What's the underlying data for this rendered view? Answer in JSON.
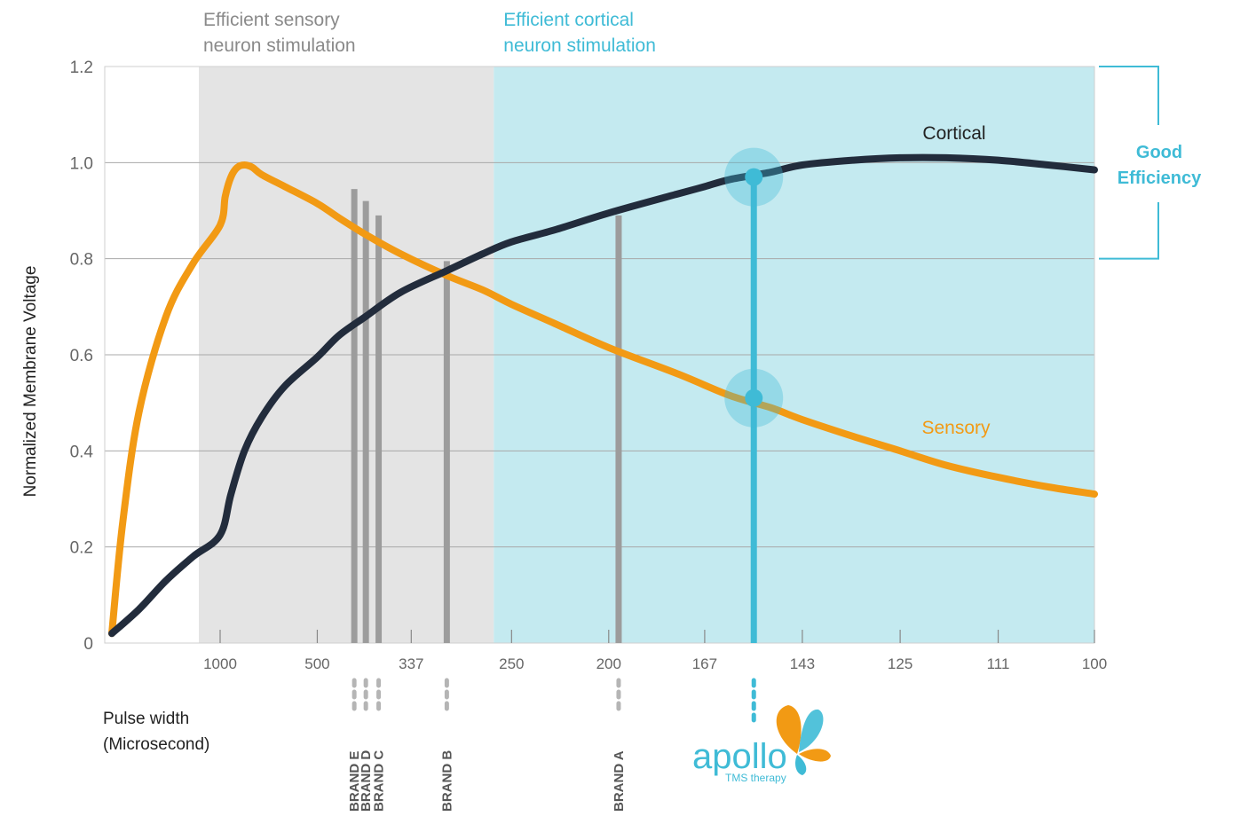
{
  "chart_data": {
    "type": "line",
    "ylabel": "Normalized Membrane Voltage",
    "xlabel_lines": [
      "Pulse width",
      "(Microsecond)"
    ],
    "ylim": [
      0,
      1.2
    ],
    "y_ticks": [
      "0",
      "0.2",
      "0.4",
      "0.6",
      "0.8",
      "1.0",
      "1.2"
    ],
    "x_ticks": [
      "1000",
      "500",
      "337",
      "250",
      "200",
      "167",
      "143",
      "125",
      "111",
      "100"
    ],
    "x_scale": "reciprocal",
    "grid": "horizontal",
    "regions": [
      {
        "name_lines": [
          "Efficient sensory",
          "neuron stimulation"
        ],
        "color": "#e4e4e4",
        "text_color": "#8a8a8a"
      },
      {
        "name_lines": [
          "Efficient cortical",
          "neuron stimulation"
        ],
        "color": "#c4eaf0",
        "text_color": "#3fbbd6"
      }
    ],
    "series": [
      {
        "name": "Cortical",
        "color": "#222c3c",
        "points": [
          [
            1200,
            0.02
          ],
          [
            1150,
            0.07
          ],
          [
            1100,
            0.13
          ],
          [
            1050,
            0.18
          ],
          [
            1000,
            0.225
          ],
          [
            900,
            0.31
          ],
          [
            800,
            0.4
          ],
          [
            700,
            0.47
          ],
          [
            600,
            0.535
          ],
          [
            500,
            0.595
          ],
          [
            450,
            0.64
          ],
          [
            400,
            0.68
          ],
          [
            350,
            0.73
          ],
          [
            300,
            0.775
          ],
          [
            270,
            0.81
          ],
          [
            250,
            0.835
          ],
          [
            225,
            0.86
          ],
          [
            200,
            0.895
          ],
          [
            175,
            0.935
          ],
          [
            167,
            0.95
          ],
          [
            160,
            0.965
          ],
          [
            150,
            0.98
          ],
          [
            143,
            0.995
          ],
          [
            133,
            1.005
          ],
          [
            125,
            1.01
          ],
          [
            118,
            1.01
          ],
          [
            111,
            1.005
          ],
          [
            105,
            0.995
          ],
          [
            100,
            0.985
          ]
        ]
      },
      {
        "name": "Sensory",
        "color": "#f29a14",
        "points": [
          [
            1200,
            0.02
          ],
          [
            1180,
            0.25
          ],
          [
            1150,
            0.48
          ],
          [
            1100,
            0.68
          ],
          [
            1050,
            0.79
          ],
          [
            1000,
            0.87
          ],
          [
            950,
            0.93
          ],
          [
            900,
            0.97
          ],
          [
            850,
            0.99
          ],
          [
            800,
            0.995
          ],
          [
            750,
            0.99
          ],
          [
            700,
            0.975
          ],
          [
            600,
            0.95
          ],
          [
            500,
            0.915
          ],
          [
            450,
            0.885
          ],
          [
            400,
            0.85
          ],
          [
            350,
            0.81
          ],
          [
            300,
            0.765
          ],
          [
            270,
            0.735
          ],
          [
            250,
            0.705
          ],
          [
            225,
            0.665
          ],
          [
            200,
            0.615
          ],
          [
            175,
            0.56
          ],
          [
            160,
            0.515
          ],
          [
            150,
            0.49
          ],
          [
            143,
            0.465
          ],
          [
            133,
            0.43
          ],
          [
            125,
            0.4
          ],
          [
            118,
            0.37
          ],
          [
            111,
            0.345
          ],
          [
            105,
            0.325
          ],
          [
            100,
            0.31
          ]
        ]
      }
    ],
    "brands": [
      {
        "label": "BRAND E",
        "x": 420,
        "top": 0.945
      },
      {
        "label": "BRAND D",
        "x": 400,
        "top": 0.92
      },
      {
        "label": "BRAND C",
        "x": 380,
        "top": 0.89
      },
      {
        "label": "BRAND B",
        "x": 300,
        "top": 0.795
      },
      {
        "label": "BRAND A",
        "x": 196,
        "top": 0.89
      }
    ],
    "highlight": {
      "x": 154,
      "cortical_value": 0.97,
      "sensory_value": 0.51,
      "color": "#3fbbd6",
      "label_lines": [
        "Good",
        "Efficiency"
      ]
    },
    "logo": {
      "word": "apollo",
      "tagline": "TMS therapy"
    }
  }
}
